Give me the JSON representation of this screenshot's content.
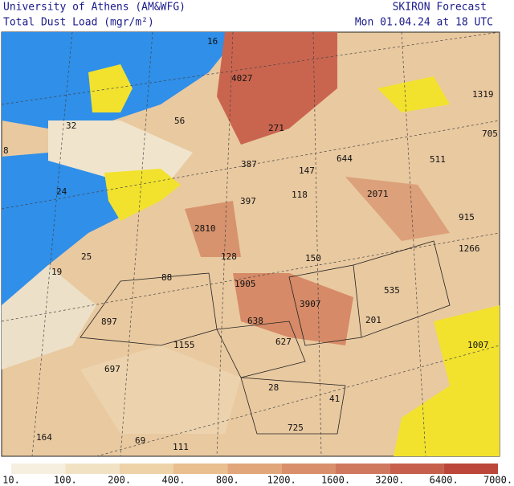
{
  "header": {
    "institution": "University of Athens (AM&WFG)",
    "product": "Total Dust Load (mgr/m²)",
    "model": "SKIRON Forecast",
    "valid_time": "Mon 01.04.24 at 18 UTC"
  },
  "map": {
    "labels": [
      16,
      4027,
      1319,
      32,
      56,
      271,
      705,
      8,
      387,
      644,
      511,
      147,
      24,
      397,
      118,
      2071,
      915,
      2810,
      25,
      128,
      150,
      1266,
      19,
      88,
      1905,
      535,
      3907,
      897,
      638,
      201,
      1155,
      627,
      1007,
      697,
      28,
      41,
      164,
      69,
      111,
      725
    ]
  },
  "colorbar": {
    "labels": [
      "10.",
      "100.",
      "200.",
      "400.",
      "800.",
      "1200.",
      "1600.",
      "3200.",
      "6400.",
      "7000."
    ],
    "colors": [
      "#f6efe0",
      "#f2e2c4",
      "#eed2a8",
      "#e9bf90",
      "#e2a67b",
      "#d98f6c",
      "#d0785e",
      "#c6604d",
      "#bb4639"
    ]
  }
}
